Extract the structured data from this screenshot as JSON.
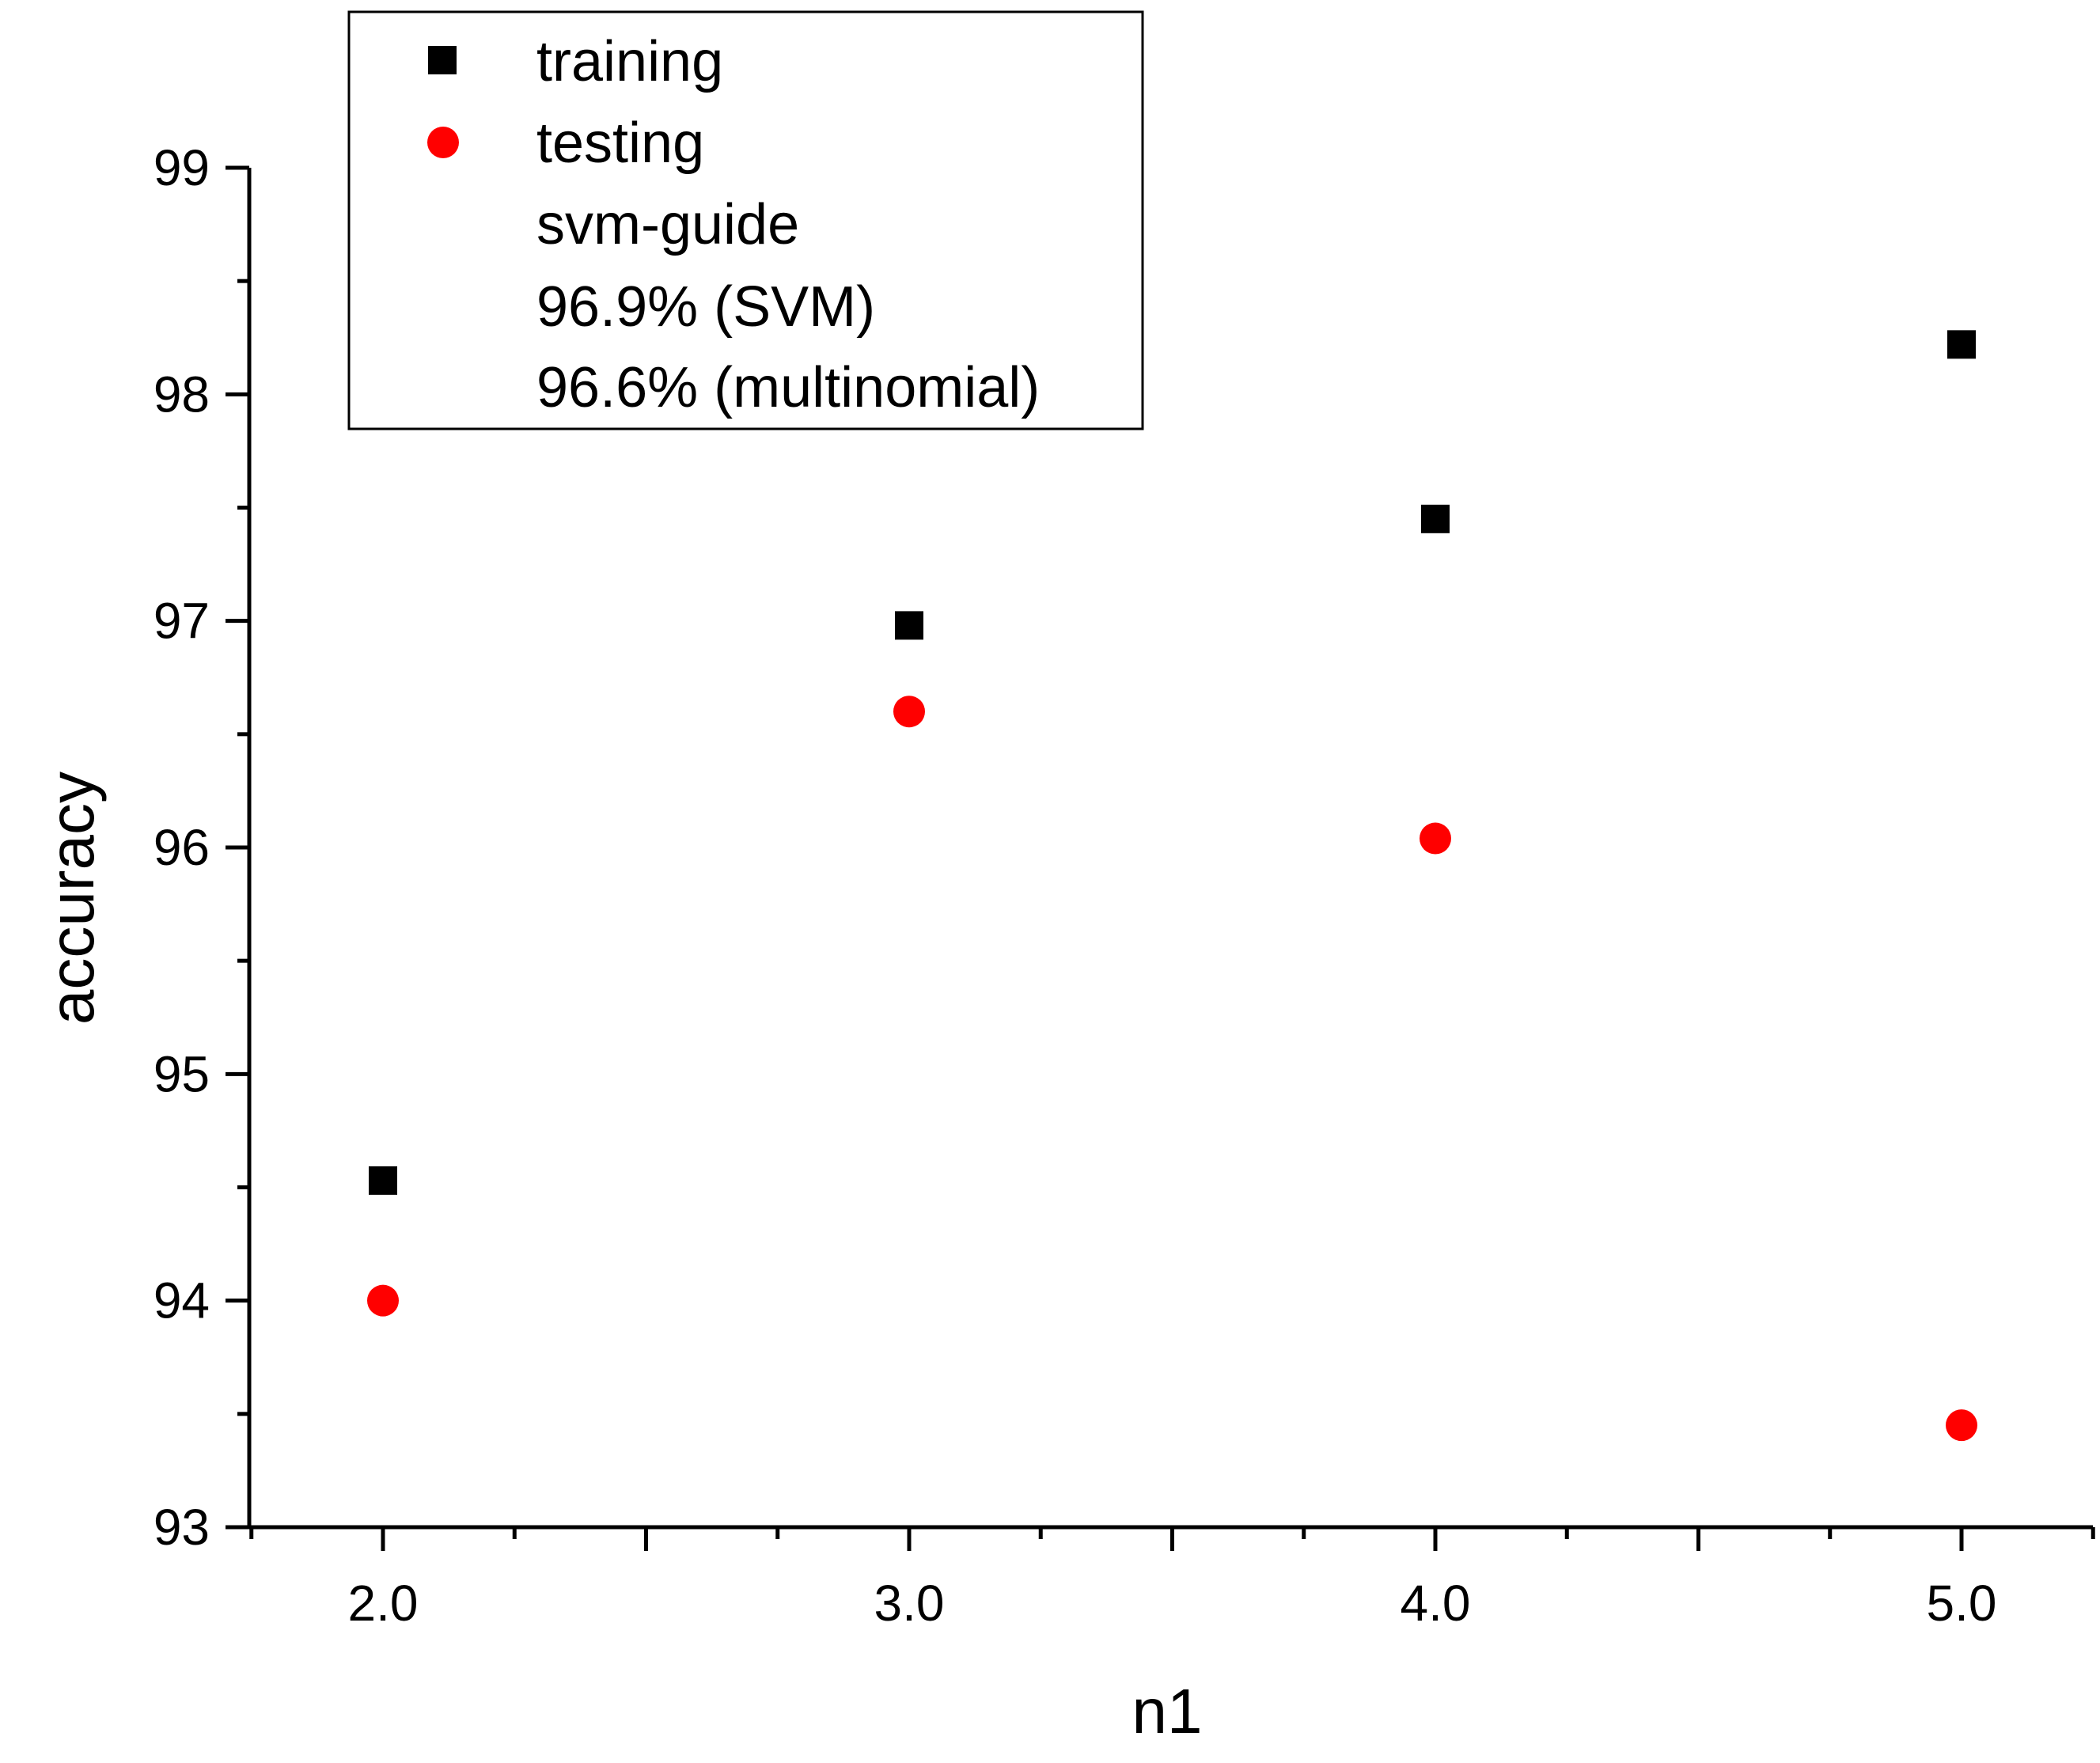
{
  "chart_data": {
    "type": "scatter",
    "xlabel": "n1",
    "ylabel": "accuracy",
    "xlim": [
      1.75,
      5.25
    ],
    "ylim": [
      93,
      99
    ],
    "x_ticks": [
      "2.0",
      "3.0",
      "4.0",
      "5.0"
    ],
    "y_ticks": [
      "93",
      "94",
      "95",
      "96",
      "97",
      "98",
      "99"
    ],
    "grid": false,
    "legend_position": "top-left",
    "series": [
      {
        "name": "training",
        "marker": "square",
        "color": "#000000",
        "x": [
          2.0,
          3.0,
          4.0,
          5.0
        ],
        "y": [
          94.53,
          96.98,
          97.45,
          98.22
        ]
      },
      {
        "name": "testing",
        "marker": "circle",
        "color": "#ff0000",
        "x": [
          2.0,
          3.0,
          4.0,
          5.0
        ],
        "y": [
          94.0,
          96.6,
          96.04,
          93.45
        ]
      }
    ],
    "legend_notes": [
      "svm-guide",
      "96.9% (SVM)",
      "96.6% (multinomial)"
    ]
  }
}
